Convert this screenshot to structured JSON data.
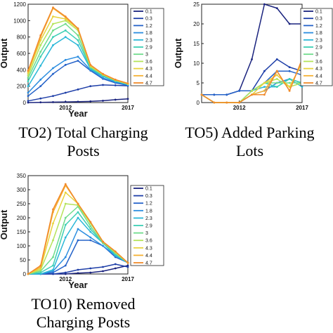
{
  "chart_data": [
    {
      "type": "line",
      "caption_line1": "TO2) Total Charging",
      "caption_line2": "Posts",
      "xlabel": "Year",
      "ylabel": "Output",
      "x": [
        2009,
        2010,
        2011,
        2012,
        2013,
        2014,
        2015,
        2016,
        2017
      ],
      "xticks": [
        "2012",
        "2017"
      ],
      "yticks": [
        "0",
        "200",
        "400",
        "600",
        "800",
        "1000",
        "1200"
      ],
      "ylim": [
        0,
        1200
      ],
      "series": [
        {
          "name": "0.1",
          "color": "#1a237e",
          "values": [
            0,
            3,
            5,
            8,
            10,
            15,
            22,
            35,
            45
          ]
        },
        {
          "name": "0.3",
          "color": "#1f3fa8",
          "values": [
            20,
            50,
            80,
            120,
            160,
            200,
            215,
            210,
            205
          ]
        },
        {
          "name": "1.2",
          "color": "#2563c9",
          "values": [
            80,
            200,
            350,
            460,
            510,
            390,
            290,
            240,
            210
          ]
        },
        {
          "name": "1.8",
          "color": "#2b8de0",
          "values": [
            120,
            280,
            420,
            520,
            560,
            400,
            300,
            250,
            215
          ]
        },
        {
          "name": "2.3",
          "color": "#2ab7d8",
          "values": [
            200,
            450,
            700,
            800,
            700,
            410,
            320,
            260,
            220
          ]
        },
        {
          "name": "2.9",
          "color": "#3dcfb5",
          "values": [
            260,
            560,
            800,
            880,
            760,
            420,
            330,
            265,
            225
          ]
        },
        {
          "name": "3",
          "color": "#6fdc8c",
          "values": [
            300,
            620,
            880,
            960,
            820,
            430,
            335,
            270,
            225
          ]
        },
        {
          "name": "3.6",
          "color": "#b5e35a",
          "values": [
            330,
            700,
            960,
            1000,
            880,
            440,
            340,
            272,
            228
          ]
        },
        {
          "name": "4.3",
          "color": "#e8d33c",
          "values": [
            360,
            760,
            1050,
            1020,
            900,
            450,
            345,
            275,
            230
          ]
        },
        {
          "name": "4.4",
          "color": "#f5b133",
          "values": [
            380,
            800,
            1150,
            1040,
            900,
            455,
            348,
            278,
            232
          ]
        },
        {
          "name": "4.7",
          "color": "#f18a2b",
          "values": [
            390,
            820,
            1160,
            1050,
            905,
            460,
            350,
            280,
            235
          ]
        }
      ]
    },
    {
      "type": "line",
      "caption_line1": "TO5) Added Parking",
      "caption_line2": "Lots",
      "xlabel": "",
      "ylabel": "Output",
      "x": [
        2009,
        2010,
        2011,
        2012,
        2013,
        2014,
        2015,
        2016,
        2017
      ],
      "xticks": [
        "2012",
        "2017"
      ],
      "yticks": [
        "0",
        "5",
        "10",
        "15",
        "20",
        "25"
      ],
      "ylim": [
        0,
        25
      ],
      "series": [
        {
          "name": "0.1",
          "color": "#1a237e",
          "values": [
            2,
            2,
            2,
            3,
            11,
            25,
            24,
            20,
            20
          ]
        },
        {
          "name": "0.3",
          "color": "#1f3fa8",
          "values": [
            2,
            2,
            2,
            3,
            3,
            8,
            11,
            9,
            8
          ]
        },
        {
          "name": "1.2",
          "color": "#2563c9",
          "values": [
            2,
            2,
            2,
            3,
            3,
            5,
            8,
            8,
            7
          ]
        },
        {
          "name": "1.8",
          "color": "#2b8de0",
          "values": [
            2,
            0,
            0,
            0,
            2,
            3,
            5,
            6,
            5
          ]
        },
        {
          "name": "2.3",
          "color": "#2ab7d8",
          "values": [
            2,
            0,
            0,
            0,
            3,
            4,
            4,
            6,
            4
          ]
        },
        {
          "name": "2.9",
          "color": "#3dcfb5",
          "values": [
            2,
            0,
            0,
            0,
            3,
            5,
            4,
            6,
            5
          ]
        },
        {
          "name": "3",
          "color": "#6fdc8c",
          "values": [
            2,
            0,
            0,
            0,
            3,
            5,
            5,
            5,
            5
          ]
        },
        {
          "name": "3.6",
          "color": "#b5e35a",
          "values": [
            2,
            0,
            0,
            0,
            3,
            5,
            6,
            4,
            5
          ]
        },
        {
          "name": "4.3",
          "color": "#e8d33c",
          "values": [
            2,
            0,
            0,
            0,
            2,
            5,
            7,
            4,
            10
          ]
        },
        {
          "name": "4.4",
          "color": "#f5b133",
          "values": [
            2,
            0,
            0,
            0,
            2,
            3,
            8,
            3,
            11
          ]
        },
        {
          "name": "4.7",
          "color": "#f18a2b",
          "values": [
            2,
            0,
            0,
            0,
            2,
            2,
            8,
            3,
            11
          ]
        }
      ]
    },
    {
      "type": "line",
      "caption_line1": "TO10) Removed",
      "caption_line2": "Charging Posts",
      "xlabel": "Year",
      "ylabel": "Output",
      "x": [
        2009,
        2010,
        2011,
        2012,
        2013,
        2014,
        2015,
        2016,
        2017
      ],
      "xticks": [
        "2012",
        "2017"
      ],
      "yticks": [
        "0",
        "50",
        "100",
        "150",
        "200",
        "250",
        "300",
        "350"
      ],
      "ylim": [
        0,
        350
      ],
      "series": [
        {
          "name": "0.1",
          "color": "#1a237e",
          "values": [
            0,
            0,
            0,
            0,
            3,
            5,
            10,
            20,
            30
          ]
        },
        {
          "name": "0.3",
          "color": "#1f3fa8",
          "values": [
            0,
            0,
            0,
            5,
            15,
            20,
            25,
            35,
            25
          ]
        },
        {
          "name": "1.2",
          "color": "#2563c9",
          "values": [
            0,
            0,
            5,
            30,
            120,
            120,
            100,
            60,
            40
          ]
        },
        {
          "name": "1.8",
          "color": "#2b8de0",
          "values": [
            0,
            0,
            10,
            60,
            160,
            130,
            100,
            65,
            40
          ]
        },
        {
          "name": "2.3",
          "color": "#2ab7d8",
          "values": [
            0,
            0,
            15,
            130,
            200,
            150,
            110,
            65,
            40
          ]
        },
        {
          "name": "2.9",
          "color": "#3dcfb5",
          "values": [
            0,
            5,
            30,
            175,
            220,
            160,
            110,
            70,
            40
          ]
        },
        {
          "name": "3",
          "color": "#6fdc8c",
          "values": [
            0,
            10,
            60,
            200,
            240,
            170,
            110,
            75,
            40
          ]
        },
        {
          "name": "3.6",
          "color": "#b5e35a",
          "values": [
            0,
            15,
            120,
            250,
            245,
            180,
            115,
            75,
            40
          ]
        },
        {
          "name": "4.3",
          "color": "#e8d33c",
          "values": [
            0,
            20,
            180,
            290,
            250,
            185,
            115,
            80,
            40
          ]
        },
        {
          "name": "4.4",
          "color": "#f5b133",
          "values": [
            0,
            25,
            220,
            315,
            250,
            185,
            115,
            80,
            40
          ]
        },
        {
          "name": "4.7",
          "color": "#f18a2b",
          "values": [
            0,
            30,
            230,
            320,
            250,
            185,
            115,
            80,
            40
          ]
        }
      ]
    }
  ]
}
